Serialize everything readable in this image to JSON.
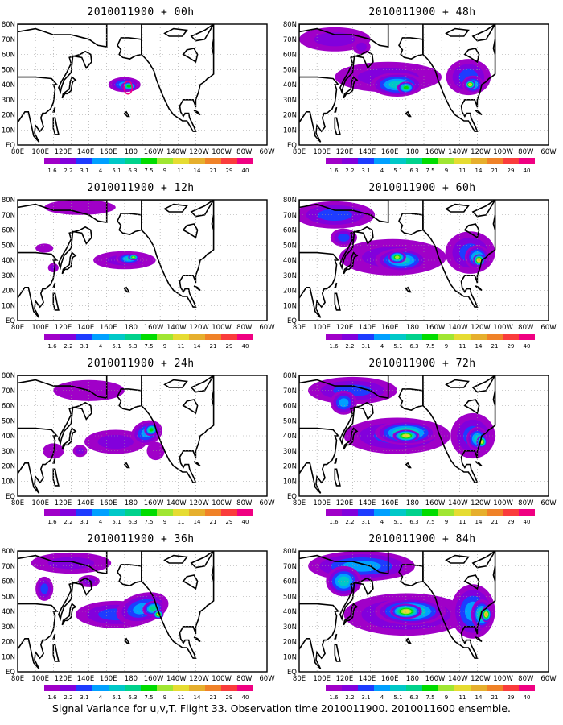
{
  "panels": [
    {
      "title": "2010011900 + 00h",
      "lead_hours": 0
    },
    {
      "title": "2010011900 + 48h",
      "lead_hours": 48
    },
    {
      "title": "2010011900 + 12h",
      "lead_hours": 12
    },
    {
      "title": "2010011900 + 60h",
      "lead_hours": 60
    },
    {
      "title": "2010011900 + 24h",
      "lead_hours": 24
    },
    {
      "title": "2010011900 + 72h",
      "lead_hours": 72
    },
    {
      "title": "2010011900 + 36h",
      "lead_hours": 36
    },
    {
      "title": "2010011900 + 84h",
      "lead_hours": 84
    }
  ],
  "lon_labels": [
    "80E",
    "100E",
    "120E",
    "140E",
    "160E",
    "180",
    "160W",
    "140W",
    "120W",
    "100W",
    "80W",
    "60W"
  ],
  "lat_labels": [
    "EQ",
    "10N",
    "20N",
    "30N",
    "40N",
    "50N",
    "60N",
    "70N",
    "80N"
  ],
  "legend": {
    "levels": [
      "1.6",
      "2.2",
      "3.1",
      "4",
      "5.1",
      "6.3",
      "7.5",
      "9",
      "11",
      "14",
      "21",
      "29",
      "40"
    ],
    "colors": [
      "#a000c8",
      "#8200dc",
      "#1e3cff",
      "#00a0ff",
      "#00c8c8",
      "#00d28c",
      "#00dc00",
      "#a0e632",
      "#e6dc32",
      "#e6af2d",
      "#f08228",
      "#fa3c3c",
      "#f00082"
    ]
  },
  "caption": "Signal Variance for u,v,T. Flight 33. Observation time 2010011900. 2010011600 ensemble."
}
